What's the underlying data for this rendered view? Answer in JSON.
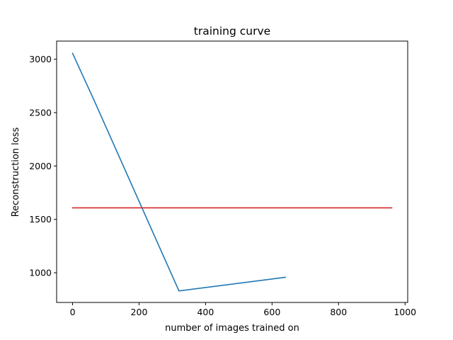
{
  "chart_data": {
    "type": "line",
    "title": "training curve",
    "xlabel": "number of images trained on",
    "ylabel": "Reconstruction loss",
    "xlim": [
      -48,
      1008
    ],
    "ylim": [
      722,
      3170
    ],
    "xticks": [
      0,
      200,
      400,
      600,
      800,
      1000
    ],
    "yticks": [
      1000,
      1500,
      2000,
      2500,
      3000
    ],
    "grid": false,
    "series": [
      {
        "color": "#1f77b4",
        "x": [
          0,
          64,
          320,
          640
        ],
        "y": [
          3055,
          2620,
          830,
          958
        ]
      },
      {
        "color": "#d62728",
        "x": [
          0,
          960
        ],
        "y": [
          1608,
          1608
        ]
      }
    ]
  }
}
